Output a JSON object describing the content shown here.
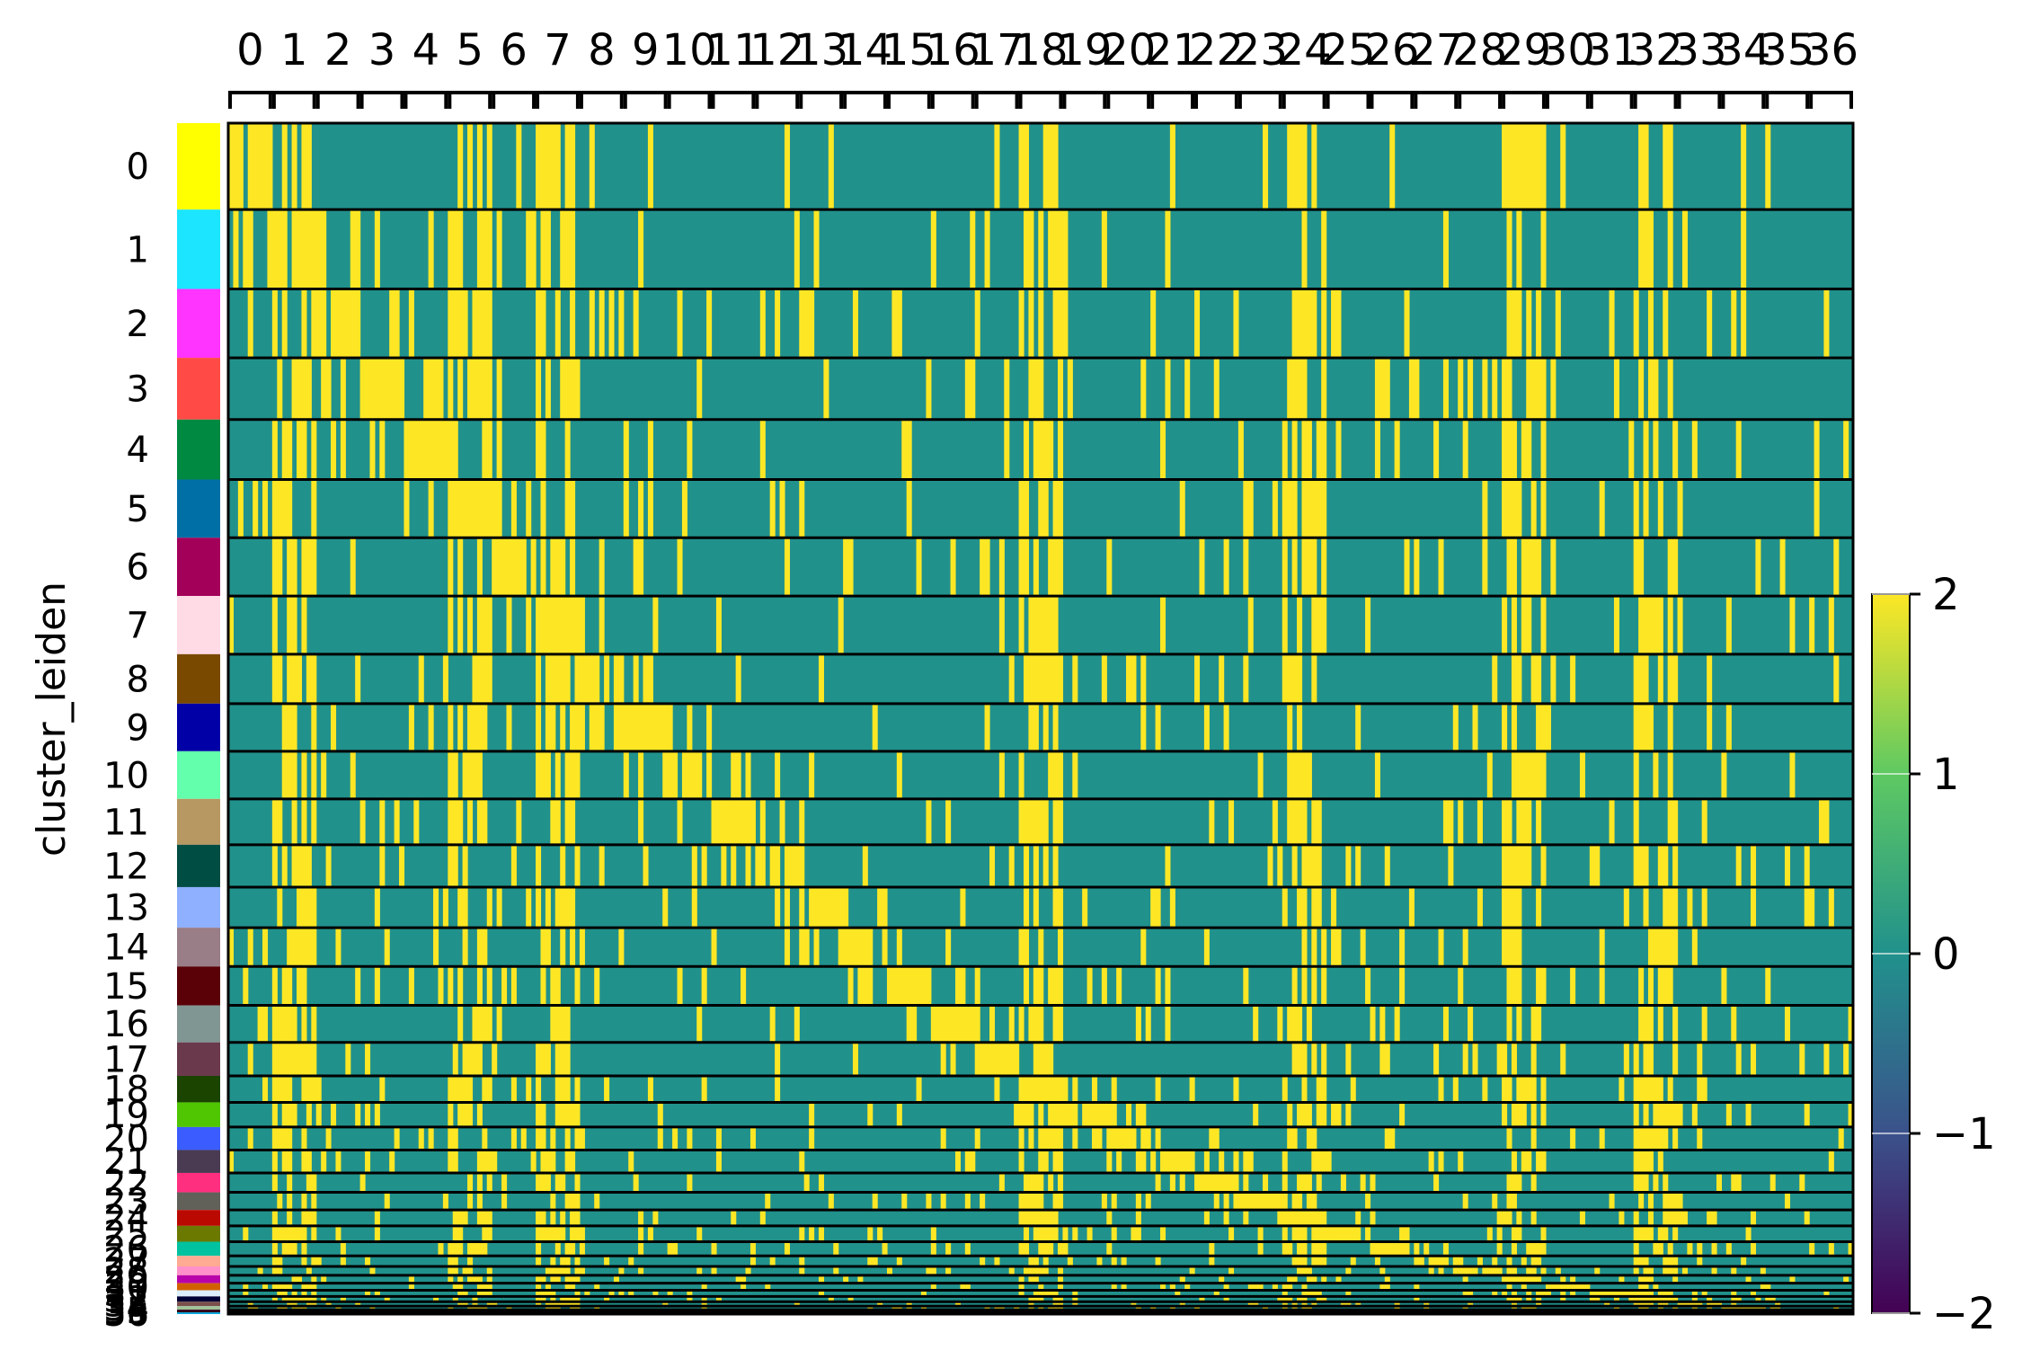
{
  "chart_data": {
    "type": "heatmap",
    "ylabel": "cluster_leiden",
    "gene_groups": [
      "0",
      "1",
      "2",
      "3",
      "4",
      "5",
      "6",
      "7",
      "8",
      "9",
      "10",
      "11",
      "12",
      "13",
      "14",
      "15",
      "16",
      "17",
      "18",
      "19",
      "20",
      "21",
      "22",
      "23",
      "24",
      "25",
      "26",
      "27",
      "28",
      "29",
      "30",
      "31",
      "32",
      "33",
      "34",
      "35",
      "36"
    ],
    "clusters": [
      "0",
      "1",
      "2",
      "3",
      "4",
      "5",
      "6",
      "7",
      "8",
      "9",
      "10",
      "11",
      "12",
      "13",
      "14",
      "15",
      "16",
      "17",
      "18",
      "19",
      "20",
      "21",
      "22",
      "23",
      "24",
      "25",
      "26",
      "27",
      "28",
      "29",
      "30",
      "31",
      "32",
      "33",
      "34",
      "35",
      "36"
    ],
    "cluster_rel_sizes": [
      98,
      90,
      78,
      70,
      68,
      66,
      66,
      66,
      56,
      54,
      54,
      52,
      48,
      46,
      44,
      44,
      42,
      38,
      30,
      28,
      26,
      26,
      22,
      20,
      18,
      18,
      16,
      12,
      10,
      9,
      8,
      7,
      6,
      5,
      4,
      3,
      2
    ],
    "cluster_colors": [
      "#ffff00",
      "#1ce6ff",
      "#ff34ff",
      "#ff4a46",
      "#008941",
      "#006fa6",
      "#a30059",
      "#ffdbe5",
      "#7a4900",
      "#0000a6",
      "#63ffac",
      "#b79762",
      "#004d43",
      "#8fb0ff",
      "#997d87",
      "#5a0007",
      "#809693",
      "#6a3a4c",
      "#1b4400",
      "#4fc601",
      "#3b5dff",
      "#4a3b53",
      "#ff2f80",
      "#61615a",
      "#ba0900",
      "#6b7900",
      "#00c2a0",
      "#ffaa92",
      "#ff90c9",
      "#b903aa",
      "#d16100",
      "#ddefff",
      "#000035",
      "#7b4f4b",
      "#a1c299",
      "#300018",
      "#0aa6d8"
    ],
    "colorbar": {
      "min": -2,
      "max": 2,
      "ticks": [
        "2",
        "1",
        "0",
        "−1",
        "−2"
      ],
      "colormap": "viridis"
    },
    "high_color": "#fde725",
    "mid_color": "#21918c",
    "low_color": "#440154"
  }
}
